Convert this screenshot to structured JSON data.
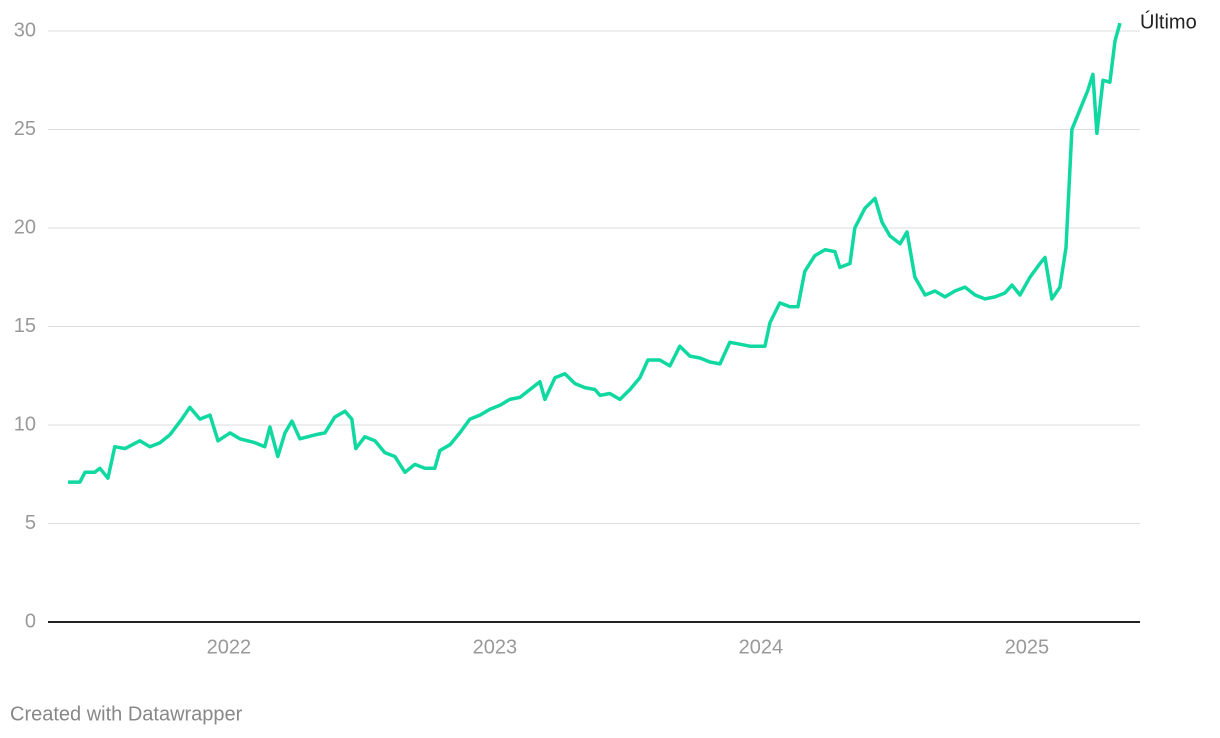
{
  "chart_data": {
    "type": "line",
    "x": [
      2021.395,
      2021.44,
      2021.459,
      2021.496,
      2021.515,
      2021.545,
      2021.571,
      2021.609,
      2021.665,
      2021.703,
      2021.741,
      2021.778,
      2021.823,
      2021.853,
      2021.891,
      2021.929,
      2021.959,
      2022.004,
      2022.041,
      2022.098,
      2022.135,
      2022.154,
      2022.184,
      2022.211,
      2022.237,
      2022.267,
      2022.323,
      2022.361,
      2022.398,
      2022.436,
      2022.462,
      2022.477,
      2022.511,
      2022.549,
      2022.586,
      2022.624,
      2022.662,
      2022.699,
      2022.737,
      2022.774,
      2022.793,
      2022.831,
      2022.868,
      2022.906,
      2022.944,
      2022.981,
      2023.019,
      2023.056,
      2023.094,
      2023.132,
      2023.169,
      2023.188,
      2023.226,
      2023.263,
      2023.301,
      2023.338,
      2023.376,
      2023.395,
      2023.432,
      2023.47,
      2023.508,
      2023.545,
      2023.575,
      2023.62,
      2023.658,
      2023.695,
      2023.733,
      2023.771,
      2023.808,
      2023.846,
      2023.883,
      2023.921,
      2023.959,
      2024.015,
      2024.034,
      2024.071,
      2024.109,
      2024.139,
      2024.165,
      2024.203,
      2024.241,
      2024.278,
      2024.297,
      2024.335,
      2024.353,
      2024.391,
      2024.429,
      2024.455,
      2024.485,
      2024.523,
      2024.549,
      2024.579,
      2024.617,
      2024.654,
      2024.692,
      2024.729,
      2024.767,
      2024.805,
      2024.842,
      2024.88,
      2024.917,
      2024.944,
      2024.974,
      2025.011,
      2025.049,
      2025.068,
      2025.094,
      2025.124,
      2025.147,
      2025.169,
      2025.199,
      2025.229,
      2025.248,
      2025.263,
      2025.286,
      2025.312,
      2025.331,
      2025.35
    ],
    "series": [
      {
        "name": "Último",
        "color": "#0fd8a0",
        "values": [
          7.1,
          7.1,
          7.6,
          7.6,
          7.8,
          7.3,
          8.9,
          8.8,
          9.2,
          8.9,
          9.1,
          9.5,
          10.3,
          10.9,
          10.3,
          10.5,
          9.2,
          9.6,
          9.3,
          9.1,
          8.9,
          9.9,
          8.4,
          9.6,
          10.2,
          9.3,
          9.5,
          9.6,
          10.4,
          10.7,
          10.3,
          8.8,
          9.4,
          9.2,
          8.6,
          8.4,
          7.6,
          8.0,
          7.8,
          7.8,
          8.7,
          9.0,
          9.6,
          10.3,
          10.5,
          10.8,
          11.0,
          11.3,
          11.4,
          11.8,
          12.2,
          11.3,
          12.4,
          12.6,
          12.1,
          11.9,
          11.8,
          11.5,
          11.6,
          11.3,
          11.8,
          12.4,
          13.3,
          13.3,
          13.0,
          14.0,
          13.5,
          13.4,
          13.2,
          13.1,
          14.2,
          14.1,
          14.0,
          14.0,
          15.2,
          16.2,
          16.0,
          16.0,
          17.8,
          18.6,
          18.9,
          18.8,
          18.0,
          18.2,
          20.0,
          21.0,
          21.5,
          20.3,
          19.6,
          19.2,
          19.8,
          17.5,
          16.6,
          16.8,
          16.5,
          16.8,
          17.0,
          16.6,
          16.4,
          16.5,
          16.7,
          17.1,
          16.6,
          17.5,
          18.2,
          18.5,
          16.4,
          17.0,
          19.0,
          25.0,
          26.0,
          27.0,
          27.8,
          24.8,
          27.5,
          27.4,
          29.5,
          30.4
        ]
      }
    ],
    "xlim": [
      2021.32,
      2025.425
    ],
    "xticks": [
      2022,
      2023,
      2024,
      2025
    ],
    "ylim": [
      0,
      30
    ],
    "yticks": [
      0,
      5,
      10,
      15,
      20,
      25,
      30
    ],
    "grid": true,
    "footer": "Created with Datawrapper"
  }
}
